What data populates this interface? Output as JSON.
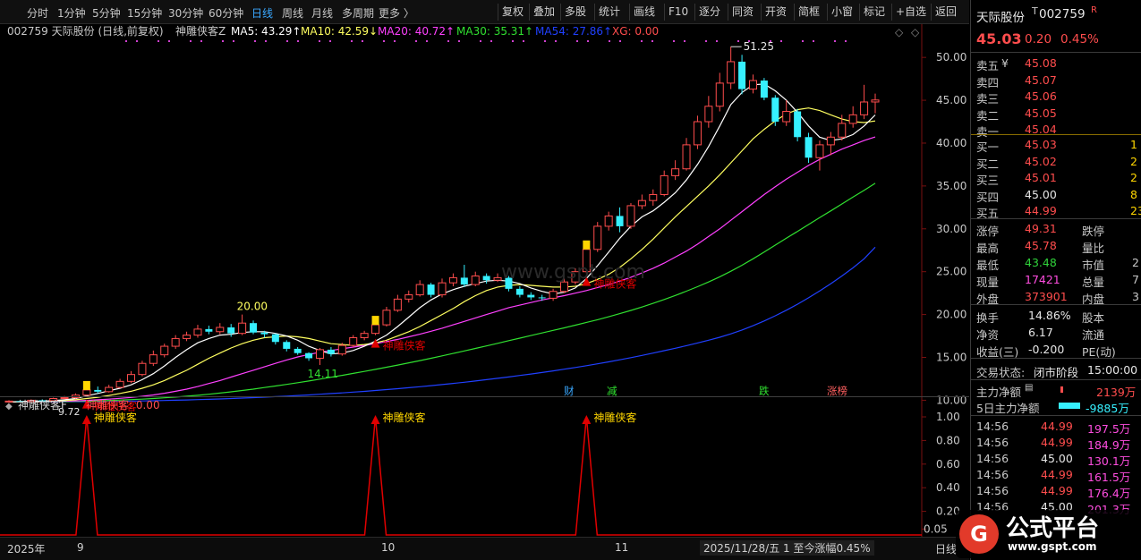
{
  "toolbar": {
    "periods": [
      "分时",
      "1分钟",
      "5分钟",
      "15分钟",
      "30分钟",
      "60分钟",
      "日线",
      "周线",
      "月线",
      "多周期",
      "更多 〉"
    ],
    "buttons": [
      "复权",
      "叠加",
      "多股",
      "统计",
      "画线",
      "F10",
      "逐分",
      "同资",
      "开资",
      "简框",
      "小窗",
      "标记",
      "+自选",
      "返回"
    ]
  },
  "legend": {
    "code_name": "002759 天际股份 (日线,前复权)",
    "formula": "神雕侠客Z",
    "ma5": "MA5: 43.29↑",
    "ma10": "MA10: 42.59↓",
    "ma20": "MA20: 40.72↑",
    "ma30": "MA30: 35.31↑",
    "ma54": "MA54: 27.86↑",
    "xg": "XG: 0.00"
  },
  "sub_legend": {
    "name": "神雕侠客F",
    "value": "神雕侠客: 0.00"
  },
  "annotations": {
    "high": "51.25",
    "low1": "20.00",
    "low2": "14.11",
    "start": "9.72",
    "signal_label": "神雕侠客",
    "sub_signal_label": "神雕侠客",
    "tags": [
      "财",
      "减",
      "跌",
      "涨榜"
    ]
  },
  "bottom": {
    "year": "2025年",
    "months": [
      "9",
      "10",
      "11"
    ],
    "status": "2025/11/28/五 1 至今涨幅0.45%",
    "right": "日线"
  },
  "site": "www.gspt.com",
  "watermark": {
    "title": "公式平台",
    "url": "www.gspt.com"
  },
  "quote": {
    "name": "天际股份",
    "code": "002759",
    "badge": "R",
    "price": "45.03",
    "change": "0.20",
    "pct": "0.45%",
    "asks": [
      {
        "label": "卖五",
        "mark": "¥",
        "price": "45.08"
      },
      {
        "label": "卖四",
        "mark": "",
        "price": "45.07"
      },
      {
        "label": "卖三",
        "mark": "",
        "price": "45.06"
      },
      {
        "label": "卖二",
        "mark": "",
        "price": "45.05"
      },
      {
        "label": "卖一",
        "mark": "",
        "price": "45.04"
      }
    ],
    "bids": [
      {
        "label": "买一",
        "price": "45.03",
        "vol": "1"
      },
      {
        "label": "买二",
        "price": "45.02",
        "vol": "2"
      },
      {
        "label": "买三",
        "price": "45.01",
        "vol": "2"
      },
      {
        "label": "买四",
        "price": "45.00",
        "vol": "8"
      },
      {
        "label": "买五",
        "price": "44.99",
        "vol": "23"
      }
    ],
    "stats": [
      {
        "l1": "涨停",
        "v1": "49.31",
        "l2": "跌停"
      },
      {
        "l1": "最高",
        "v1": "45.78",
        "l2": "量比"
      },
      {
        "l1": "最低",
        "v1": "43.48",
        "l2": "市值"
      },
      {
        "l1": "现量",
        "v1": "17421",
        "l2": "总量"
      },
      {
        "l1": "外盘",
        "v1": "373901",
        "l2": "内盘"
      }
    ],
    "stats_tail": [
      "",
      "",
      "2",
      "7",
      "3"
    ],
    "stats2": [
      {
        "l1": "换手",
        "v1": "14.86%",
        "l2": "股本"
      },
      {
        "l1": "净资",
        "v1": "6.17",
        "l2": "流通"
      },
      {
        "l1": "收益(三)",
        "v1": "-0.200",
        "l2": "PE(动)"
      }
    ],
    "trade_state_label": "交易状态:",
    "trade_state": "闭市阶段",
    "trade_time": "15:00:00",
    "main_flow_label": "主力净额",
    "main_flow": "2139万",
    "flow5_label": "5日主力净额",
    "flow5": "-9885万",
    "ticks": [
      {
        "t": "14:56",
        "p": "44.99",
        "v": "197.5万"
      },
      {
        "t": "14:56",
        "p": "44.99",
        "v": "184.9万"
      },
      {
        "t": "14:56",
        "p": "45.00",
        "v": "130.1万"
      },
      {
        "t": "14:56",
        "p": "44.99",
        "v": "161.5万"
      },
      {
        "t": "14:56",
        "p": "44.99",
        "v": "176.4万"
      },
      {
        "t": "14:56",
        "p": "45.00",
        "v": "201.3万"
      }
    ]
  },
  "colors": {
    "up": "#ff4d4d",
    "down": "#36f0ff",
    "ma5": "#ffffff",
    "ma10": "#ffff60",
    "ma20": "#ff40ff",
    "ma30": "#30e030",
    "ma54": "#2040ff",
    "signal": "#e00000"
  },
  "chart_data": {
    "type": "candlestick",
    "y_axis": [
      "50.00",
      "45.00",
      "40.00",
      "35.00",
      "30.00",
      "25.00",
      "20.00",
      "15.00",
      "10.00"
    ],
    "ylim": [
      9.0,
      52.0
    ],
    "sub_y_axis": [
      "1.00",
      "0.80",
      "0.60",
      "0.40",
      "0.20",
      "0.05"
    ],
    "candles": [
      [
        9.8,
        9.9,
        9.7,
        10.0
      ],
      [
        9.9,
        9.85,
        9.75,
        10.0
      ],
      [
        9.85,
        10.0,
        9.8,
        10.1
      ],
      [
        10.0,
        9.95,
        9.85,
        10.1
      ],
      [
        9.95,
        10.2,
        9.9,
        10.3
      ],
      [
        10.2,
        10.3,
        10.1,
        10.5
      ],
      [
        10.3,
        10.6,
        10.2,
        10.8
      ],
      [
        10.6,
        11.2,
        10.5,
        11.5
      ],
      [
        11.2,
        11.0,
        10.8,
        11.6
      ],
      [
        11.0,
        11.5,
        10.9,
        11.8
      ],
      [
        11.5,
        12.2,
        11.4,
        12.5
      ],
      [
        12.2,
        13.0,
        12.0,
        13.4
      ],
      [
        13.0,
        14.3,
        12.8,
        14.6
      ],
      [
        14.3,
        15.3,
        14.0,
        15.8
      ],
      [
        15.3,
        16.3,
        15.0,
        16.6
      ],
      [
        16.3,
        17.2,
        16.0,
        17.6
      ],
      [
        17.2,
        17.6,
        16.9,
        18.0
      ],
      [
        17.6,
        18.3,
        17.3,
        18.8
      ],
      [
        18.3,
        18.0,
        17.7,
        18.7
      ],
      [
        18.0,
        18.5,
        17.7,
        19.0
      ],
      [
        18.5,
        17.8,
        17.4,
        18.9
      ],
      [
        17.8,
        19.0,
        17.6,
        20.0
      ],
      [
        19.0,
        17.9,
        17.7,
        19.3
      ],
      [
        17.9,
        17.7,
        17.3,
        18.1
      ],
      [
        17.7,
        16.8,
        16.5,
        17.8
      ],
      [
        16.8,
        16.0,
        15.7,
        17.0
      ],
      [
        16.0,
        15.5,
        15.3,
        16.2
      ],
      [
        15.5,
        14.9,
        14.6,
        15.6
      ],
      [
        14.9,
        15.9,
        14.11,
        16.1
      ],
      [
        15.9,
        15.4,
        15.1,
        16.2
      ],
      [
        15.4,
        16.4,
        15.2,
        16.7
      ],
      [
        16.4,
        17.3,
        16.2,
        17.6
      ],
      [
        17.3,
        17.8,
        17.0,
        18.1
      ],
      [
        17.8,
        18.8,
        17.6,
        19.2
      ],
      [
        18.8,
        20.5,
        18.6,
        20.9
      ],
      [
        20.5,
        21.8,
        20.3,
        22.3
      ],
      [
        21.8,
        22.3,
        21.4,
        22.8
      ],
      [
        22.3,
        23.5,
        22.1,
        24.0
      ],
      [
        23.5,
        22.3,
        22.0,
        23.7
      ],
      [
        22.3,
        23.7,
        22.0,
        24.2
      ],
      [
        23.7,
        24.3,
        23.3,
        24.8
      ],
      [
        24.3,
        23.5,
        23.2,
        25.8
      ],
      [
        23.5,
        24.5,
        23.3,
        25.0
      ],
      [
        24.5,
        24.0,
        23.6,
        24.8
      ],
      [
        24.0,
        24.3,
        23.8,
        24.8
      ],
      [
        24.3,
        23.0,
        22.7,
        24.5
      ],
      [
        23.0,
        22.3,
        22.0,
        23.3
      ],
      [
        22.3,
        22.0,
        21.7,
        22.6
      ],
      [
        22.0,
        21.9,
        21.6,
        22.3
      ],
      [
        21.9,
        22.7,
        21.6,
        23.0
      ],
      [
        22.7,
        23.8,
        22.5,
        24.2
      ],
      [
        23.8,
        25.0,
        23.5,
        25.4
      ],
      [
        25.0,
        27.6,
        24.8,
        28.0
      ],
      [
        27.6,
        30.3,
        27.3,
        30.8
      ],
      [
        30.3,
        31.5,
        29.8,
        32.0
      ],
      [
        31.5,
        30.3,
        29.6,
        32.5
      ],
      [
        30.3,
        32.7,
        30.0,
        33.0
      ],
      [
        32.7,
        33.3,
        32.3,
        34.0
      ],
      [
        33.3,
        34.0,
        32.7,
        34.6
      ],
      [
        34.0,
        36.2,
        33.8,
        36.8
      ],
      [
        36.2,
        37.0,
        35.7,
        38.0
      ],
      [
        37.0,
        39.8,
        36.8,
        40.6
      ],
      [
        39.8,
        42.5,
        39.3,
        43.2
      ],
      [
        42.5,
        44.3,
        41.8,
        45.5
      ],
      [
        44.3,
        47.0,
        43.7,
        48.2
      ],
      [
        47.0,
        49.5,
        46.3,
        51.25
      ],
      [
        49.5,
        46.3,
        45.7,
        50.3
      ],
      [
        46.3,
        47.3,
        45.8,
        48.0
      ],
      [
        47.3,
        45.3,
        45.0,
        47.6
      ],
      [
        45.3,
        42.5,
        42.0,
        45.6
      ],
      [
        42.5,
        43.7,
        42.0,
        45.0
      ],
      [
        43.7,
        40.7,
        40.2,
        44.0
      ],
      [
        40.7,
        38.3,
        37.7,
        41.2
      ],
      [
        38.3,
        39.8,
        36.8,
        40.3
      ],
      [
        39.8,
        40.7,
        38.6,
        41.3
      ],
      [
        40.7,
        42.3,
        40.3,
        43.3
      ],
      [
        42.3,
        43.3,
        41.8,
        44.3
      ],
      [
        43.3,
        44.8,
        42.8,
        46.8
      ],
      [
        44.8,
        45.03,
        43.48,
        45.78
      ]
    ],
    "ma5": [
      9.8,
      9.85,
      9.88,
      9.9,
      9.95,
      10.05,
      10.2,
      10.5,
      10.8,
      11.1,
      11.4,
      11.8,
      12.4,
      13.1,
      14.0,
      15.0,
      15.9,
      16.7,
      17.2,
      17.6,
      17.7,
      17.9,
      18.0,
      18.0,
      17.8,
      17.5,
      17.0,
      16.3,
      15.8,
      15.4,
      15.5,
      15.8,
      16.3,
      16.9,
      17.6,
      18.6,
      19.7,
      20.8,
      21.7,
      22.4,
      22.9,
      23.3,
      23.6,
      23.9,
      24.0,
      23.9,
      23.6,
      23.1,
      22.7,
      22.4,
      22.6,
      23.1,
      24.2,
      25.7,
      27.3,
      28.9,
      30.3,
      31.4,
      32.1,
      33.1,
      34.2,
      35.7,
      37.5,
      39.6,
      42.0,
      44.5,
      45.9,
      46.8,
      46.9,
      46.1,
      45.0,
      43.6,
      42.0,
      40.7,
      40.3,
      40.5,
      41.0,
      42.0,
      43.29
    ],
    "ma10": [
      9.8,
      9.82,
      9.85,
      9.87,
      9.9,
      9.95,
      10.05,
      10.2,
      10.35,
      10.55,
      10.8,
      11.05,
      11.4,
      11.8,
      12.3,
      12.9,
      13.5,
      14.2,
      14.9,
      15.5,
      16.1,
      16.6,
      17.0,
      17.3,
      17.4,
      17.5,
      17.4,
      17.2,
      16.9,
      16.6,
      16.5,
      16.4,
      16.5,
      16.7,
      17.0,
      17.5,
      18.0,
      18.6,
      19.3,
      20.0,
      20.7,
      21.5,
      22.2,
      22.8,
      23.2,
      23.4,
      23.5,
      23.4,
      23.3,
      23.2,
      23.2,
      23.3,
      23.6,
      24.1,
      24.7,
      25.5,
      26.5,
      27.6,
      28.8,
      30.1,
      31.4,
      32.6,
      33.8,
      35.0,
      36.3,
      37.7,
      39.1,
      40.5,
      41.6,
      42.6,
      43.4,
      43.9,
      44.1,
      43.8,
      43.3,
      42.8,
      42.5,
      42.4,
      42.59
    ],
    "ma20": [
      9.8,
      9.81,
      9.82,
      9.84,
      9.86,
      9.89,
      9.93,
      9.98,
      10.05,
      10.13,
      10.22,
      10.33,
      10.46,
      10.62,
      10.82,
      11.05,
      11.3,
      11.6,
      11.95,
      12.3,
      12.7,
      13.1,
      13.5,
      13.9,
      14.3,
      14.7,
      15.05,
      15.35,
      15.6,
      15.8,
      16.0,
      16.2,
      16.4,
      16.6,
      16.85,
      17.1,
      17.4,
      17.7,
      18.05,
      18.4,
      18.8,
      19.2,
      19.6,
      20.0,
      20.4,
      20.8,
      21.1,
      21.4,
      21.7,
      21.95,
      22.2,
      22.5,
      22.8,
      23.15,
      23.5,
      23.9,
      24.35,
      24.85,
      25.4,
      26.0,
      26.7,
      27.4,
      28.2,
      29.1,
      30.0,
      31.0,
      32.0,
      33.0,
      34.0,
      34.9,
      35.8,
      36.6,
      37.4,
      38.1,
      38.7,
      39.3,
      39.8,
      40.3,
      40.72
    ],
    "ma30": [
      9.8,
      9.8,
      9.81,
      9.82,
      9.83,
      9.85,
      9.87,
      9.9,
      9.93,
      9.97,
      10.02,
      10.07,
      10.13,
      10.2,
      10.28,
      10.37,
      10.47,
      10.58,
      10.7,
      10.84,
      10.98,
      11.14,
      11.3,
      11.48,
      11.66,
      11.85,
      12.05,
      12.25,
      12.46,
      12.68,
      12.9,
      13.13,
      13.36,
      13.6,
      13.85,
      14.1,
      14.36,
      14.63,
      14.9,
      15.18,
      15.46,
      15.75,
      16.04,
      16.34,
      16.64,
      16.95,
      17.25,
      17.55,
      17.85,
      18.15,
      18.45,
      18.76,
      19.08,
      19.4,
      19.74,
      20.1,
      20.48,
      20.88,
      21.3,
      21.75,
      22.22,
      22.72,
      23.25,
      23.8,
      24.4,
      25.05,
      25.75,
      26.5,
      27.3,
      28.1,
      28.9,
      29.7,
      30.5,
      31.3,
      32.1,
      32.9,
      33.7,
      34.5,
      35.31
    ],
    "ma54": [
      9.8,
      9.8,
      9.8,
      9.81,
      9.81,
      9.82,
      9.83,
      9.84,
      9.85,
      9.86,
      9.88,
      9.9,
      9.92,
      9.94,
      9.97,
      10.0,
      10.03,
      10.07,
      10.11,
      10.15,
      10.2,
      10.25,
      10.3,
      10.36,
      10.42,
      10.48,
      10.55,
      10.62,
      10.7,
      10.78,
      10.86,
      10.95,
      11.04,
      11.14,
      11.24,
      11.35,
      11.46,
      11.58,
      11.7,
      11.83,
      11.96,
      12.1,
      12.25,
      12.4,
      12.56,
      12.72,
      12.89,
      13.06,
      13.24,
      13.43,
      13.62,
      13.82,
      14.03,
      14.25,
      14.48,
      14.72,
      14.97,
      15.23,
      15.5,
      15.78,
      16.07,
      16.37,
      16.68,
      17.0,
      17.35,
      17.75,
      18.2,
      18.7,
      19.25,
      19.85,
      20.5,
      21.2,
      21.95,
      22.75,
      23.6,
      24.5,
      25.45,
      26.5,
      27.86
    ],
    "signals": [
      7,
      33,
      52
    ]
  }
}
